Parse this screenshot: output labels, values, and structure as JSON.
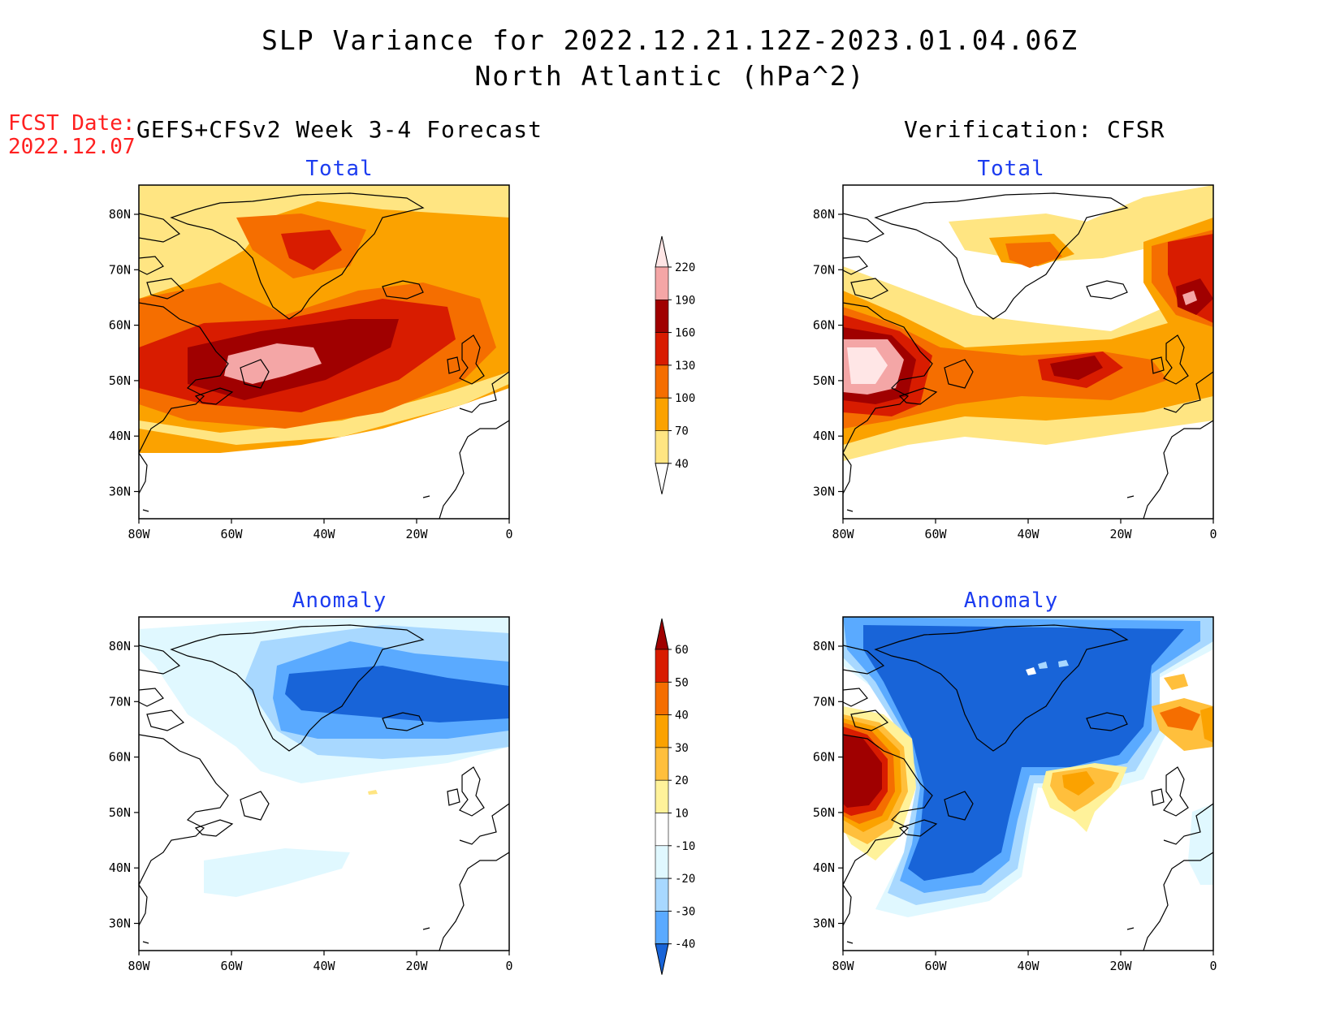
{
  "title_line1": "SLP Variance for 2022.12.21.12Z-2023.01.04.06Z",
  "title_line2": "North Atlantic (hPa^2)",
  "fcst_label": "FCST Date:",
  "fcst_date": "2022.12.07",
  "left_heading": "GEFS+CFSv2 Week 3-4 Forecast",
  "right_heading": "Verification: CFSR",
  "panels": {
    "top_left": "Total",
    "top_right": "Total",
    "bottom_left": "Anomaly",
    "bottom_right": "Anomaly"
  },
  "map_axes": {
    "x_ticks": [
      "80W",
      "60W",
      "40W",
      "20W",
      "0"
    ],
    "y_ticks": [
      "80N",
      "70N",
      "60N",
      "50N",
      "40N",
      "30N"
    ]
  },
  "colorbar_total": {
    "labels": [
      "220",
      "190",
      "160",
      "130",
      "100",
      "70",
      "40"
    ],
    "colors": [
      "#ffe6e6",
      "#f4a6a6",
      "#a00000",
      "#d81c00",
      "#f56e00",
      "#fba200",
      "#ffe582",
      "#ffffff"
    ]
  },
  "colorbar_anomaly": {
    "labels": [
      "60",
      "50",
      "40",
      "30",
      "20",
      "10",
      "-10",
      "-20",
      "-30",
      "-40"
    ],
    "colors": [
      "#a00000",
      "#d81c00",
      "#f56e00",
      "#fba200",
      "#ffbf3c",
      "#fff29a",
      "#ffffff",
      "#e0f8ff",
      "#a8d8ff",
      "#5aaaff",
      "#1864d8"
    ]
  },
  "colors": {
    "title_red": "#ff2020",
    "panel_label_blue": "#1c3cf0"
  }
}
